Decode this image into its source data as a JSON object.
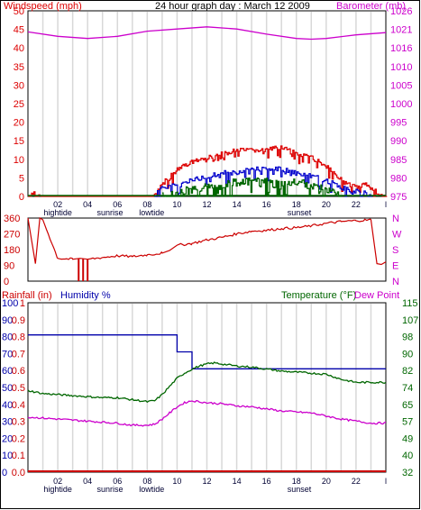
{
  "colors": {
    "frame": "#000000",
    "grid_vertical": "#d8d8d8",
    "wind": "#dd0000",
    "gust": "#0000cc",
    "barometer": "#cc00cc",
    "direction": "#cc0000",
    "humidity": "#0000aa",
    "temperature": "#006600",
    "dew_point": "#cc00cc",
    "rainfall": "#cc0000"
  },
  "chart_data": [
    {
      "id": "wind",
      "type": "line",
      "title": "24 hour graph day : March 12 2009",
      "left_axis_title": "Windspeed (mph)",
      "right_axis_title": "Barometer (mb)",
      "left_ylim": [
        0,
        50
      ],
      "left_ticks": [
        "0",
        "5",
        "10",
        "15",
        "20",
        "25",
        "30",
        "35",
        "40",
        "45",
        "50"
      ],
      "right_ylim": [
        975,
        1026
      ],
      "right_ticks": [
        "975",
        "980",
        "985",
        "990",
        "995",
        "1000",
        "1005",
        "1010",
        "1016",
        "1021",
        "1026"
      ],
      "x_range": [
        0,
        24
      ],
      "x_ticks": [
        "02",
        "04",
        "06",
        "08",
        "10",
        "12",
        "14",
        "16",
        "18",
        "20",
        "22",
        "l"
      ],
      "x_annotations": [
        {
          "x": 2,
          "text": "hightide"
        },
        {
          "x": 5.5,
          "text": "sunrise"
        },
        {
          "x": 8.3,
          "text": "lowtide"
        },
        {
          "x": 18.2,
          "text": "sunset"
        }
      ],
      "grid_vertical": true,
      "barometer": {
        "x": [
          0,
          2,
          4,
          6,
          8,
          10,
          12,
          14,
          16,
          18,
          19,
          20,
          22,
          24
        ],
        "y": [
          1020.2,
          1019.0,
          1018.4,
          1019.0,
          1020.4,
          1021.0,
          1021.6,
          1021.0,
          1019.6,
          1018.4,
          1018.2,
          1018.4,
          1019.4,
          1020.0
        ]
      },
      "wind_envelope": {
        "x": [
          0,
          0.5,
          1,
          8.3,
          9,
          10,
          11,
          12,
          13,
          14,
          15,
          16,
          17,
          18,
          19,
          20,
          21,
          22,
          22.6,
          23.3,
          24
        ],
        "y": [
          0,
          2,
          0,
          0,
          4,
          8,
          10,
          11,
          12,
          13,
          13,
          13,
          14,
          12,
          11,
          9,
          5,
          3,
          4,
          2,
          0
        ]
      },
      "gust_envelope": {
        "x": [
          8.5,
          9,
          10,
          11,
          12,
          13,
          14,
          15,
          16,
          17,
          18,
          19,
          20,
          21,
          22,
          23
        ],
        "y": [
          1,
          3,
          4,
          5,
          6,
          7,
          7,
          8,
          8,
          8,
          7,
          6,
          5,
          3,
          2,
          1
        ]
      },
      "temp_envelope": {
        "x": [
          9,
          10,
          11,
          12,
          13,
          14,
          15,
          16,
          17,
          18,
          19,
          20,
          21
        ],
        "y": [
          1,
          2,
          3,
          4,
          4,
          5,
          5,
          5,
          4,
          5,
          4,
          3,
          1
        ]
      }
    },
    {
      "id": "direction",
      "type": "line",
      "left_ylim": [
        0,
        360
      ],
      "left_ticks": [
        "0",
        "90",
        "180",
        "270",
        "360"
      ],
      "right_ticks": [
        "N",
        "W",
        "S",
        "E",
        "N"
      ],
      "x_range": [
        0,
        24
      ],
      "x": [
        0,
        0.5,
        0.8,
        1.0,
        2,
        3,
        3.5,
        4,
        5,
        6,
        7,
        8,
        9,
        9.5,
        10,
        11,
        12,
        13,
        14,
        15,
        16,
        17,
        18,
        19,
        20,
        21,
        22,
        23,
        23.4,
        23.7,
        24
      ],
      "y": [
        360,
        100,
        365,
        350,
        130,
        125,
        130,
        125,
        135,
        145,
        140,
        150,
        160,
        175,
        205,
        215,
        235,
        250,
        270,
        285,
        290,
        300,
        305,
        315,
        330,
        340,
        345,
        350,
        100,
        95,
        110
      ],
      "spikes": [
        {
          "x": 3.4,
          "y": 0
        },
        {
          "x": 3.7,
          "y": 0
        },
        {
          "x": 4.0,
          "y": 0
        }
      ]
    },
    {
      "id": "atmosphere",
      "type": "line",
      "left_axis_title": "Rainfall (in)",
      "second_left_title": "Humidity %",
      "right_axis_title": "Temperature (°F)",
      "right_axis_title2": "Dew Point",
      "humidity_ylim": [
        0,
        100
      ],
      "humidity_ticks": [
        "0",
        "10",
        "20",
        "30",
        "40",
        "50",
        "60",
        "70",
        "80",
        "90",
        "100"
      ],
      "rain_ticks": [
        "0.0",
        "0.1",
        "0.2",
        "0.3",
        "0.4",
        "0.5",
        "0.6",
        "0.7",
        "0.8",
        "0.9",
        "1"
      ],
      "right_ylim": [
        32,
        115
      ],
      "right_ticks": [
        "32",
        "40",
        "49",
        "57",
        "65",
        "74",
        "82",
        "90",
        "98",
        "107",
        "115"
      ],
      "x_range": [
        0,
        24
      ],
      "x_ticks": [
        "02",
        "04",
        "06",
        "08",
        "10",
        "12",
        "14",
        "16",
        "18",
        "20",
        "22",
        "l"
      ],
      "x_annotations": [
        {
          "x": 2,
          "text": "hightide"
        },
        {
          "x": 5.5,
          "text": "sunrise"
        },
        {
          "x": 8.3,
          "text": "lowtide"
        },
        {
          "x": 18.2,
          "text": "sunset"
        }
      ],
      "grid_vertical": true,
      "series": [
        {
          "name": "Humidity %",
          "x": [
            0,
            10,
            10,
            11,
            11,
            24
          ],
          "y": [
            81,
            81,
            71,
            71,
            61,
            61
          ]
        },
        {
          "name": "Temperature (°F)",
          "x": [
            0,
            1,
            2,
            3,
            4,
            5,
            6,
            7,
            8,
            8.5,
            9,
            9.5,
            10,
            10.5,
            11,
            11.5,
            12,
            12.5,
            13,
            14,
            15,
            16,
            17,
            18,
            19,
            20,
            21,
            22,
            23,
            24
          ],
          "y": [
            72,
            70.5,
            70,
            69.5,
            69,
            68.5,
            68.5,
            67.5,
            66.5,
            67,
            70,
            74,
            78,
            80.5,
            82.5,
            84,
            85,
            85.5,
            85,
            84,
            83.5,
            82.5,
            81.5,
            81,
            80.5,
            80,
            77.5,
            76,
            76,
            76
          ]
        },
        {
          "name": "Dew Point",
          "x": [
            0,
            1,
            2,
            3,
            4,
            5,
            6,
            7,
            8,
            8.5,
            9,
            9.5,
            10,
            10.5,
            11,
            11.5,
            12,
            13,
            14,
            15,
            16,
            17,
            18,
            19,
            20,
            21,
            22,
            23,
            24
          ],
          "y": [
            59,
            58.5,
            58,
            57.5,
            57,
            56.5,
            56,
            55,
            55,
            55.5,
            58,
            61,
            64,
            66,
            67,
            66.5,
            66,
            65.5,
            64.5,
            64,
            63,
            62,
            61.5,
            61,
            59.5,
            58,
            57,
            56,
            56
          ]
        },
        {
          "name": "Rainfall (in)",
          "x": [
            0,
            24
          ],
          "y": [
            0,
            0
          ]
        }
      ]
    }
  ]
}
